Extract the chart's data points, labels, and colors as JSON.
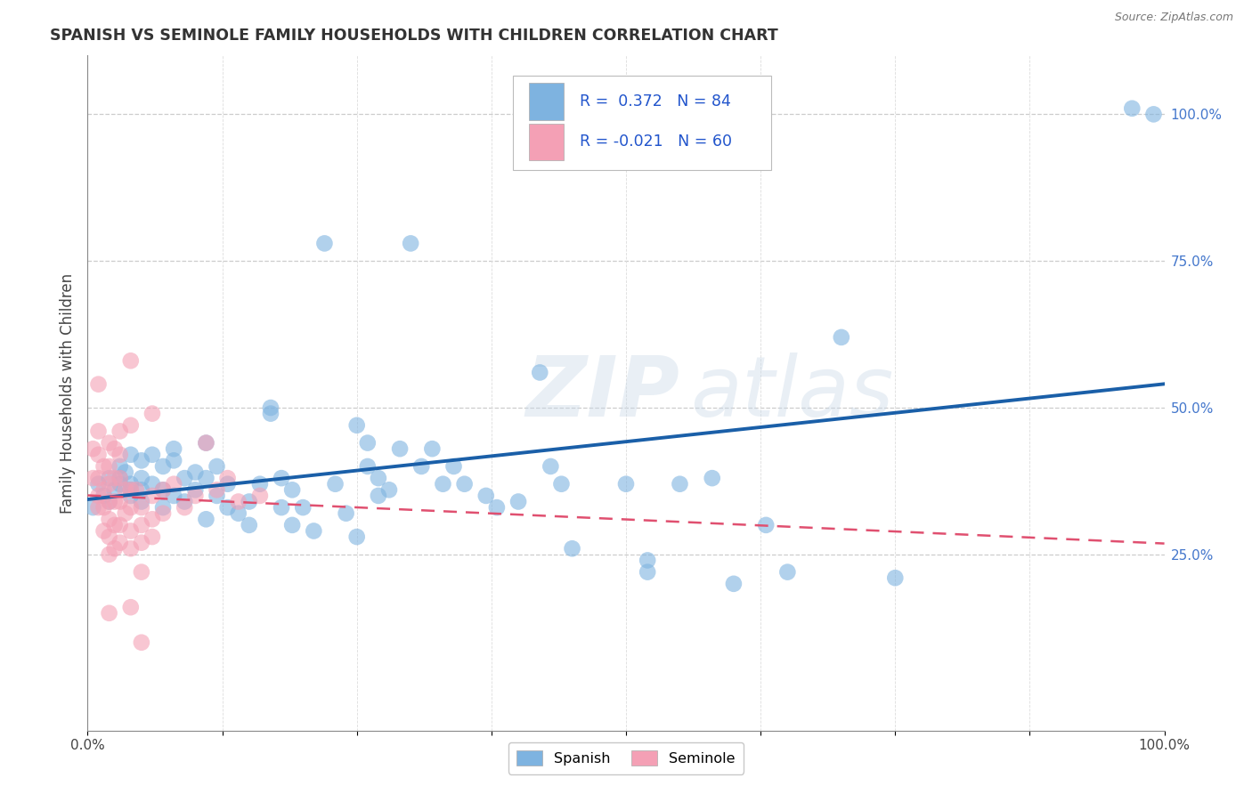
{
  "title": "SPANISH VS SEMINOLE FAMILY HOUSEHOLDS WITH CHILDREN CORRELATION CHART",
  "source": "Source: ZipAtlas.com",
  "ylabel": "Family Households with Children",
  "watermark": "ZIPatlas",
  "r_spanish": 0.372,
  "n_spanish": 84,
  "r_seminole": -0.021,
  "n_seminole": 60,
  "spanish_color": "#7EB3E0",
  "seminole_color": "#F4A0B5",
  "spanish_line_color": "#1A5FA8",
  "seminole_line_color": "#E05070",
  "background_color": "#FFFFFF",
  "grid_color": "#CCCCCC",
  "right_axis_color": "#4477CC",
  "xlim": [
    0.0,
    1.0
  ],
  "ylim": [
    -0.05,
    1.1
  ],
  "spanish_scatter": [
    [
      0.005,
      0.33
    ],
    [
      0.01,
      0.37
    ],
    [
      0.015,
      0.35
    ],
    [
      0.02,
      0.38
    ],
    [
      0.02,
      0.34
    ],
    [
      0.025,
      0.36
    ],
    [
      0.03,
      0.4
    ],
    [
      0.03,
      0.38
    ],
    [
      0.03,
      0.37
    ],
    [
      0.035,
      0.39
    ],
    [
      0.04,
      0.37
    ],
    [
      0.04,
      0.35
    ],
    [
      0.04,
      0.42
    ],
    [
      0.04,
      0.36
    ],
    [
      0.05,
      0.38
    ],
    [
      0.05,
      0.36
    ],
    [
      0.05,
      0.34
    ],
    [
      0.05,
      0.41
    ],
    [
      0.06,
      0.42
    ],
    [
      0.06,
      0.37
    ],
    [
      0.07,
      0.36
    ],
    [
      0.07,
      0.33
    ],
    [
      0.07,
      0.4
    ],
    [
      0.08,
      0.41
    ],
    [
      0.08,
      0.35
    ],
    [
      0.08,
      0.43
    ],
    [
      0.09,
      0.34
    ],
    [
      0.09,
      0.38
    ],
    [
      0.1,
      0.39
    ],
    [
      0.1,
      0.36
    ],
    [
      0.11,
      0.44
    ],
    [
      0.11,
      0.38
    ],
    [
      0.11,
      0.31
    ],
    [
      0.12,
      0.4
    ],
    [
      0.12,
      0.35
    ],
    [
      0.13,
      0.33
    ],
    [
      0.13,
      0.37
    ],
    [
      0.14,
      0.32
    ],
    [
      0.15,
      0.3
    ],
    [
      0.15,
      0.34
    ],
    [
      0.16,
      0.37
    ],
    [
      0.17,
      0.5
    ],
    [
      0.17,
      0.49
    ],
    [
      0.18,
      0.38
    ],
    [
      0.18,
      0.33
    ],
    [
      0.19,
      0.36
    ],
    [
      0.19,
      0.3
    ],
    [
      0.2,
      0.33
    ],
    [
      0.21,
      0.29
    ],
    [
      0.22,
      0.78
    ],
    [
      0.23,
      0.37
    ],
    [
      0.24,
      0.32
    ],
    [
      0.25,
      0.28
    ],
    [
      0.25,
      0.47
    ],
    [
      0.26,
      0.44
    ],
    [
      0.26,
      0.4
    ],
    [
      0.27,
      0.38
    ],
    [
      0.27,
      0.35
    ],
    [
      0.28,
      0.36
    ],
    [
      0.29,
      0.43
    ],
    [
      0.3,
      0.78
    ],
    [
      0.31,
      0.4
    ],
    [
      0.32,
      0.43
    ],
    [
      0.33,
      0.37
    ],
    [
      0.34,
      0.4
    ],
    [
      0.35,
      0.37
    ],
    [
      0.37,
      0.35
    ],
    [
      0.38,
      0.33
    ],
    [
      0.4,
      0.34
    ],
    [
      0.42,
      0.56
    ],
    [
      0.43,
      0.4
    ],
    [
      0.44,
      0.37
    ],
    [
      0.45,
      0.26
    ],
    [
      0.5,
      0.37
    ],
    [
      0.52,
      0.24
    ],
    [
      0.52,
      0.22
    ],
    [
      0.55,
      0.37
    ],
    [
      0.58,
      0.38
    ],
    [
      0.6,
      0.2
    ],
    [
      0.63,
      0.3
    ],
    [
      0.65,
      0.22
    ],
    [
      0.7,
      0.62
    ],
    [
      0.75,
      0.21
    ],
    [
      0.97,
      1.01
    ],
    [
      0.99,
      1.0
    ]
  ],
  "seminole_scatter": [
    [
      0.005,
      0.43
    ],
    [
      0.005,
      0.38
    ],
    [
      0.01,
      0.54
    ],
    [
      0.01,
      0.46
    ],
    [
      0.01,
      0.42
    ],
    [
      0.01,
      0.38
    ],
    [
      0.01,
      0.35
    ],
    [
      0.01,
      0.33
    ],
    [
      0.015,
      0.4
    ],
    [
      0.015,
      0.36
    ],
    [
      0.015,
      0.33
    ],
    [
      0.015,
      0.29
    ],
    [
      0.02,
      0.44
    ],
    [
      0.02,
      0.4
    ],
    [
      0.02,
      0.37
    ],
    [
      0.02,
      0.34
    ],
    [
      0.02,
      0.31
    ],
    [
      0.02,
      0.28
    ],
    [
      0.02,
      0.25
    ],
    [
      0.02,
      0.15
    ],
    [
      0.025,
      0.43
    ],
    [
      0.025,
      0.38
    ],
    [
      0.025,
      0.34
    ],
    [
      0.025,
      0.3
    ],
    [
      0.025,
      0.26
    ],
    [
      0.03,
      0.46
    ],
    [
      0.03,
      0.42
    ],
    [
      0.03,
      0.38
    ],
    [
      0.03,
      0.34
    ],
    [
      0.03,
      0.3
    ],
    [
      0.03,
      0.27
    ],
    [
      0.035,
      0.36
    ],
    [
      0.035,
      0.32
    ],
    [
      0.04,
      0.58
    ],
    [
      0.04,
      0.47
    ],
    [
      0.04,
      0.36
    ],
    [
      0.04,
      0.33
    ],
    [
      0.04,
      0.29
    ],
    [
      0.04,
      0.26
    ],
    [
      0.04,
      0.16
    ],
    [
      0.045,
      0.36
    ],
    [
      0.05,
      0.33
    ],
    [
      0.05,
      0.3
    ],
    [
      0.05,
      0.27
    ],
    [
      0.05,
      0.22
    ],
    [
      0.05,
      0.1
    ],
    [
      0.06,
      0.49
    ],
    [
      0.06,
      0.35
    ],
    [
      0.06,
      0.31
    ],
    [
      0.06,
      0.28
    ],
    [
      0.07,
      0.36
    ],
    [
      0.07,
      0.32
    ],
    [
      0.08,
      0.37
    ],
    [
      0.09,
      0.33
    ],
    [
      0.1,
      0.35
    ],
    [
      0.11,
      0.44
    ],
    [
      0.12,
      0.36
    ],
    [
      0.13,
      0.38
    ],
    [
      0.14,
      0.34
    ],
    [
      0.16,
      0.35
    ]
  ]
}
